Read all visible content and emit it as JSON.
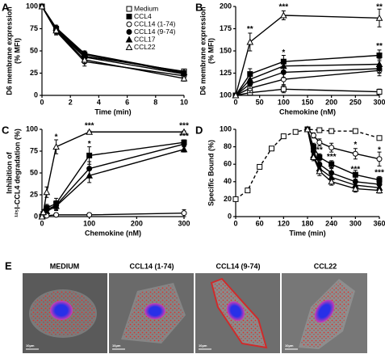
{
  "chart_data": [
    {
      "type": "line",
      "panel": "A",
      "xlabel": "Time (min)",
      "ylabel": [
        "D6 membrane expression",
        "(% MFI)"
      ],
      "x": [
        0,
        1,
        3,
        10
      ],
      "xlim": [
        0,
        10
      ],
      "xticks": [
        0,
        2,
        4,
        6,
        8,
        10
      ],
      "ylim": [
        0,
        100
      ],
      "yticks": [
        0,
        25,
        50,
        75,
        100
      ],
      "legend": "upper right",
      "series": [
        {
          "name": "Medium",
          "color": "#000000",
          "marker": "square",
          "filled": false,
          "values": [
            100,
            75,
            44,
            27
          ],
          "errors": [
            0,
            3,
            4,
            2
          ]
        },
        {
          "name": "CCL4",
          "color": "#000000",
          "marker": "square",
          "filled": true,
          "values": [
            100,
            74,
            46,
            25
          ],
          "errors": [
            0,
            3,
            3,
            2
          ]
        },
        {
          "name": "CCL14 (1-74)",
          "color": "#000000",
          "marker": "circle",
          "filled": false,
          "values": [
            100,
            72,
            38,
            22
          ],
          "errors": [
            0,
            4,
            5,
            3
          ]
        },
        {
          "name": "CCL14 (9-74)",
          "color": "#000000",
          "marker": "circle",
          "filled": true,
          "values": [
            100,
            73,
            43,
            24
          ],
          "errors": [
            0,
            3,
            4,
            2
          ]
        },
        {
          "name": "CCL17",
          "color": "#000000",
          "marker": "triangle",
          "filled": true,
          "values": [
            100,
            76,
            47,
            26
          ],
          "errors": [
            0,
            3,
            3,
            2
          ]
        },
        {
          "name": "CCL22",
          "color": "#000000",
          "marker": "triangle",
          "filled": false,
          "values": [
            100,
            73,
            40,
            19
          ],
          "errors": [
            0,
            4,
            4,
            3
          ]
        }
      ]
    },
    {
      "type": "line",
      "panel": "B",
      "xlabel": "Chemokine (nM)",
      "ylabel": [
        "D6 membrane expression",
        "(% MFI)"
      ],
      "x": [
        0,
        30,
        100,
        300
      ],
      "xlim": [
        0,
        300
      ],
      "xticks": [
        0,
        50,
        100,
        150,
        200,
        250,
        300
      ],
      "ylim": [
        100,
        200
      ],
      "yticks": [
        100,
        125,
        150,
        175,
        200
      ],
      "series": [
        {
          "color": "#000000",
          "marker": "square",
          "filled": false,
          "values": [
            100,
            103,
            107,
            104
          ],
          "errors": [
            0,
            3,
            4,
            3
          ]
        },
        {
          "color": "#000000",
          "marker": "square",
          "filled": true,
          "values": [
            100,
            124,
            138,
            145
          ],
          "errors": [
            0,
            6,
            7,
            6
          ]
        },
        {
          "color": "#000000",
          "marker": "circle",
          "filled": false,
          "values": [
            100,
            108,
            118,
            128
          ],
          "errors": [
            0,
            5,
            6,
            6
          ]
        },
        {
          "color": "#000000",
          "marker": "circle",
          "filled": true,
          "values": [
            100,
            113,
            126,
            130
          ],
          "errors": [
            0,
            5,
            6,
            5
          ]
        },
        {
          "color": "#000000",
          "marker": "triangle",
          "filled": true,
          "values": [
            100,
            118,
            133,
            135
          ],
          "errors": [
            0,
            5,
            6,
            6
          ]
        },
        {
          "color": "#000000",
          "marker": "triangle",
          "filled": false,
          "values": [
            100,
            160,
            190,
            187
          ],
          "errors": [
            0,
            10,
            5,
            10
          ]
        }
      ],
      "annotations": [
        {
          "text": "**",
          "x": 30,
          "y": 174
        },
        {
          "text": "***",
          "x": 100,
          "y": 199
        },
        {
          "text": "**",
          "x": 300,
          "y": 199
        },
        {
          "text": "*",
          "x": 100,
          "y": 148
        },
        {
          "text": "**",
          "x": 300,
          "y": 155
        }
      ]
    },
    {
      "type": "line",
      "panel": "C",
      "xlabel": "Chemokine (nM)",
      "ylabel": [
        "Inhibition of",
        "¹²⁵I-CCL4 degradation (%)"
      ],
      "x": [
        0,
        3,
        10,
        30,
        100,
        300
      ],
      "xlim": [
        0,
        300
      ],
      "xticks": [
        0,
        100,
        200,
        300
      ],
      "ylim": [
        0,
        100
      ],
      "yticks": [
        0,
        25,
        50,
        75,
        100
      ],
      "series": [
        {
          "color": "#000000",
          "marker": "square",
          "filled": true,
          "values": [
            0,
            3,
            10,
            15,
            70,
            85
          ],
          "errors": [
            0,
            2,
            4,
            6,
            10,
            3
          ]
        },
        {
          "color": "#000000",
          "marker": "circle",
          "filled": true,
          "values": [
            0,
            2,
            8,
            13,
            55,
            83
          ],
          "errors": [
            0,
            2,
            4,
            5,
            8,
            3
          ]
        },
        {
          "color": "#000000",
          "marker": "triangle",
          "filled": true,
          "values": [
            0,
            1,
            6,
            12,
            47,
            77
          ],
          "errors": [
            0,
            2,
            3,
            5,
            8,
            3
          ]
        },
        {
          "color": "#000000",
          "marker": "circle",
          "filled": false,
          "values": [
            0,
            0,
            1,
            2,
            2,
            4
          ],
          "errors": [
            0,
            1,
            1,
            2,
            2,
            4
          ]
        },
        {
          "color": "#000000",
          "marker": "triangle",
          "filled": false,
          "values": [
            0,
            5,
            28,
            80,
            97,
            97
          ],
          "errors": [
            0,
            3,
            6,
            8,
            1,
            1
          ]
        }
      ],
      "annotations": [
        {
          "text": "*",
          "x": 30,
          "y": 91
        },
        {
          "text": "*",
          "x": 100,
          "y": 83
        },
        {
          "text": "***",
          "x": 100,
          "y": 104
        },
        {
          "text": "***",
          "x": 300,
          "y": 104
        },
        {
          "text": "***",
          "x": 300,
          "y": 92
        }
      ]
    },
    {
      "type": "line",
      "panel": "D",
      "xlabel": "Time (min)",
      "ylabel": [
        "Specific Bound (%)"
      ],
      "xlim": [
        0,
        360
      ],
      "xticks": [
        0,
        60,
        120,
        180,
        240,
        300,
        360
      ],
      "ylim": [
        0,
        100
      ],
      "yticks": [
        0,
        20,
        40,
        60,
        80,
        100
      ],
      "series": [
        {
          "color": "#000000",
          "marker": "square",
          "filled": false,
          "dash": true,
          "x": [
            0,
            30,
            60,
            90,
            120,
            150,
            180,
            210,
            240,
            300,
            360
          ],
          "values": [
            20,
            30,
            57,
            78,
            92,
            97,
            100,
            99,
            98,
            98,
            90
          ],
          "errors": [
            0,
            0,
            0,
            0,
            0,
            0,
            0,
            1,
            1,
            1,
            1
          ]
        },
        {
          "color": "#000000",
          "marker": "circle",
          "filled": false,
          "x": [
            180,
            195,
            210,
            240,
            300,
            360
          ],
          "values": [
            100,
            93,
            85,
            79,
            72,
            66
          ],
          "errors": [
            0,
            3,
            4,
            5,
            6,
            8
          ]
        },
        {
          "color": "#000000",
          "marker": "square",
          "filled": true,
          "x": [
            180,
            195,
            210,
            240,
            300,
            360
          ],
          "values": [
            100,
            80,
            68,
            60,
            48,
            42
          ],
          "errors": [
            0,
            4,
            4,
            4,
            5,
            4
          ]
        },
        {
          "color": "#000000",
          "marker": "circle",
          "filled": true,
          "x": [
            180,
            195,
            210,
            240,
            300,
            360
          ],
          "values": [
            100,
            75,
            60,
            50,
            40,
            37
          ],
          "errors": [
            0,
            4,
            5,
            5,
            5,
            4
          ]
        },
        {
          "color": "#000000",
          "marker": "triangle",
          "filled": true,
          "x": [
            180,
            195,
            210,
            240,
            300,
            360
          ],
          "values": [
            100,
            70,
            55,
            45,
            36,
            33
          ],
          "errors": [
            0,
            4,
            5,
            5,
            5,
            4
          ]
        },
        {
          "color": "#000000",
          "marker": "triangle",
          "filled": false,
          "x": [
            180,
            195,
            210,
            240,
            300,
            360
          ],
          "values": [
            100,
            68,
            52,
            40,
            32,
            30
          ],
          "errors": [
            0,
            4,
            5,
            4,
            4,
            3
          ]
        }
      ],
      "annotations": [
        {
          "text": "*",
          "x": 300,
          "y": 82
        },
        {
          "text": "*",
          "x": 360,
          "y": 76
        },
        {
          "text": "**",
          "x": 210,
          "y": 76
        },
        {
          "text": "***",
          "x": 240,
          "y": 68
        },
        {
          "text": "***",
          "x": 300,
          "y": 54
        },
        {
          "text": "***",
          "x": 360,
          "y": 50
        }
      ]
    }
  ],
  "panel_e": {
    "label": "E",
    "images": [
      {
        "title": "MEDIUM",
        "scale": "10μm"
      },
      {
        "title": "CCL14 (1-74)",
        "scale": "10μm"
      },
      {
        "title": "CCL14 (9-74)",
        "scale": "10μm"
      },
      {
        "title": "CCL22",
        "scale": "10μm"
      }
    ]
  }
}
